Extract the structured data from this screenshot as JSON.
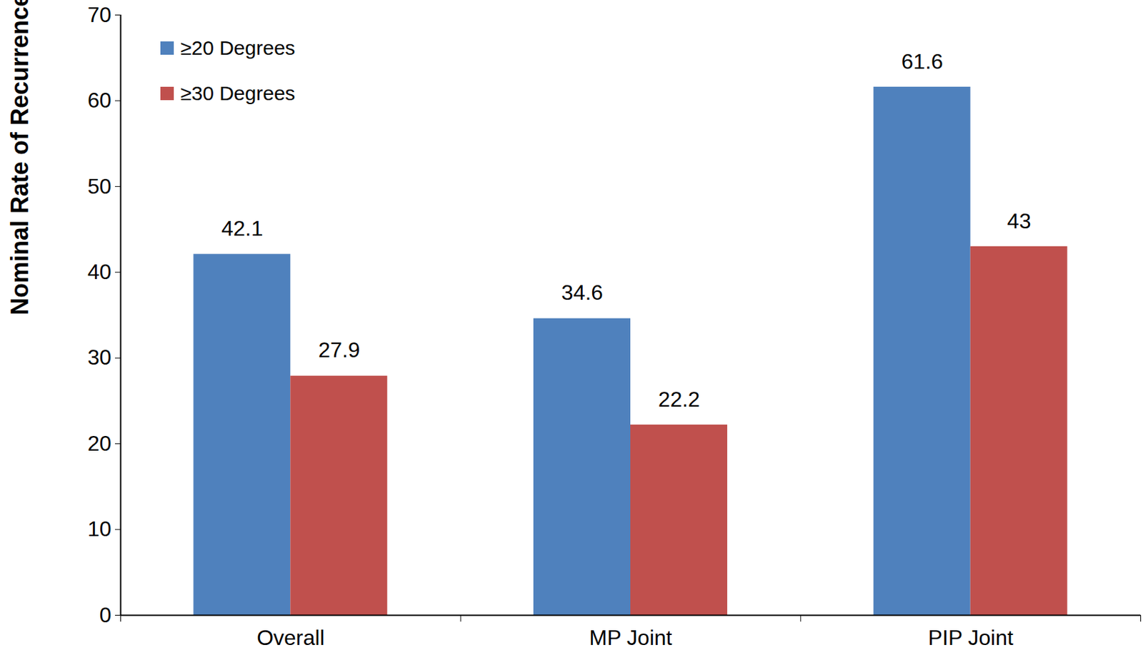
{
  "chart_data": {
    "type": "bar",
    "y_label": "Nominal Rate of Recurrence (%)",
    "categories": [
      "Overall",
      "MP Joint",
      "PIP Joint"
    ],
    "series": [
      {
        "name": "≥20 Degrees",
        "color": "#4f81bd",
        "values": [
          42.1,
          34.6,
          61.6
        ]
      },
      {
        "name": "≥30 Degrees",
        "color": "#c0504d",
        "values": [
          27.9,
          22.2,
          43
        ]
      }
    ],
    "ylim": [
      0,
      70
    ],
    "yticks": [
      0,
      10,
      20,
      30,
      40,
      50,
      60,
      70
    ],
    "grid": false,
    "legend": "top-left",
    "data_labels": true
  }
}
